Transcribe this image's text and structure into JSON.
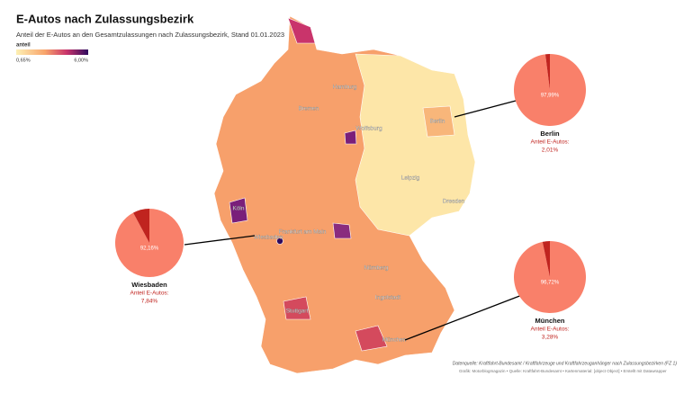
{
  "header": {
    "title": "E-Autos nach Zulassungsbezirk",
    "subtitle": "Anteil der E-Autos an den Gesamtzulassungen nach Zulassungsbezirk, Stand 01.01.2023"
  },
  "legend": {
    "title": "anteil",
    "min_label": "0,65%",
    "max_label": "6,00%"
  },
  "cities": [
    "Hamburg",
    "Bremen",
    "Berlin",
    "Wolfsburg",
    "Leipzig",
    "Köln",
    "Dresden",
    "Frankfurt am Main",
    "Wiesbaden",
    "Nürnberg",
    "Ingolstadt",
    "Stuttgart",
    "München"
  ],
  "pies": [
    {
      "name": "Wiesbaden",
      "caption": "Anteil E-Autos:",
      "values": [
        92.16,
        7.84
      ],
      "value_labels": [
        "92,16%",
        "7,84%"
      ],
      "colors": [
        "#f9806a",
        "#c0241f"
      ]
    },
    {
      "name": "Berlin",
      "caption": "Anteil E-Autos:",
      "values": [
        97.99,
        2.01
      ],
      "value_labels": [
        "97,99%",
        "2,01%"
      ],
      "colors": [
        "#f9806a",
        "#c0241f"
      ]
    },
    {
      "name": "München",
      "caption": "Anteil E-Autos:",
      "values": [
        96.72,
        3.28
      ],
      "value_labels": [
        "96,72%",
        "3,28%"
      ],
      "colors": [
        "#f9806a",
        "#c0241f"
      ]
    }
  ],
  "notes": [
    "Datenquelle: Kraftfahrt-Bundesamt / Kraftfahrzeuge und Kraftfahrzeuganhänger nach Zulassungsbezirken (FZ 1)",
    "Grafik: Motorblogmagazin • Quelle: Kraftfahrt-Bundesamt • Kartenmaterial: [object Object] • Erstellt mit Datawrapper"
  ]
}
